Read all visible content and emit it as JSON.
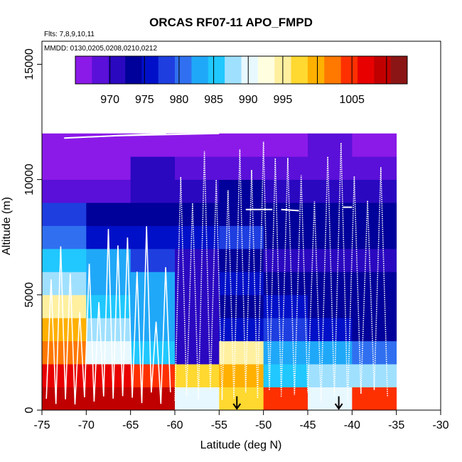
{
  "chart_data": {
    "type": "heatmap",
    "title": "ORCAS RF07-11 APO_FMPD",
    "subtitle_flights": "Flts: 7,8,9,10,11",
    "subtitle_dates": "MMDD: 0130,0205,0208,0210,0212",
    "xlabel": "Latitude (deg N)",
    "ylabel": "Altitude (m)",
    "xlim": [
      -75,
      -30
    ],
    "ylim": [
      0,
      16000
    ],
    "x_ticks": [
      -75,
      -70,
      -65,
      -60,
      -55,
      -50,
      -45,
      -40,
      -35,
      -30
    ],
    "x_tick_labels": [
      "-75",
      "-70",
      "-65",
      "-60",
      "-55",
      "-50",
      "-45",
      "-40",
      "-35",
      "-30"
    ],
    "y_ticks": [
      0,
      5000,
      10000,
      15000
    ],
    "y_tick_labels": [
      "0",
      "5000",
      "10000",
      "15000"
    ],
    "colorbar": {
      "range": [
        965,
        1013
      ],
      "tick_values": [
        970,
        975,
        980,
        985,
        990,
        995,
        1005
      ],
      "tick_labels": [
        "970",
        "975",
        "980",
        "985",
        "990",
        "995",
        "1005"
      ],
      "colors": [
        "#8b1ae8",
        "#5a10d8",
        "#2a08c0",
        "#00009a",
        "#0010c8",
        "#1e3ee0",
        "#3070f0",
        "#20a8f8",
        "#20c8ff",
        "#a0e0ff",
        "#e8f8ff",
        "#ffffe0",
        "#fff0a0",
        "#ffd830",
        "#ffb000",
        "#ff7800",
        "#ff3000",
        "#e80000",
        "#c00000",
        "#8b1515"
      ]
    },
    "grid": {
      "lat_edges": [
        -75,
        -70,
        -65,
        -60,
        -55,
        -50,
        -45,
        -40,
        -35
      ],
      "alt_edges": [
        0,
        1000,
        2000,
        3000,
        4000,
        5000,
        6000,
        7000,
        8000,
        9000,
        10000,
        11000,
        12000
      ],
      "values_by_row_bottom_to_top": [
        [
          1010,
          1010,
          1010,
          990,
          997,
          1004,
          991,
          1004
        ],
        [
          1007,
          1006,
          1005,
          998,
          999,
          986,
          987,
          987
        ],
        [
          1002,
          990,
          986,
          972,
          994,
          984,
          984,
          981
        ],
        [
          1000,
          988,
          984,
          972,
          976,
          979,
          976,
          973
        ],
        [
          994,
          985,
          984,
          972,
          973,
          976,
          974,
          973
        ],
        [
          987,
          983,
          982,
          972,
          975,
          973,
          973,
          973
        ],
        [
          985,
          983,
          978,
          972,
          973,
          972,
          972,
          972
        ],
        [
          981,
          975,
          976,
          975,
          977,
          973,
          974,
          974
        ],
        [
          977,
          973,
          973,
          974,
          973,
          973,
          973,
          973
        ],
        [
          969,
          968,
          972,
          970,
          973,
          971,
          972,
          970
        ],
        [
          967,
          967,
          972,
          969,
          968,
          969,
          969,
          968
        ],
        [
          965,
          965,
          965,
          966,
          967,
          966,
          968,
          967
        ]
      ]
    },
    "annotations": [
      {
        "type": "arrow",
        "latitude": -53,
        "label": "down-arrow"
      },
      {
        "type": "arrow",
        "latitude": -41.5,
        "label": "down-arrow"
      }
    ],
    "flight_track_color": "#ffffff",
    "legend_position": "top"
  }
}
